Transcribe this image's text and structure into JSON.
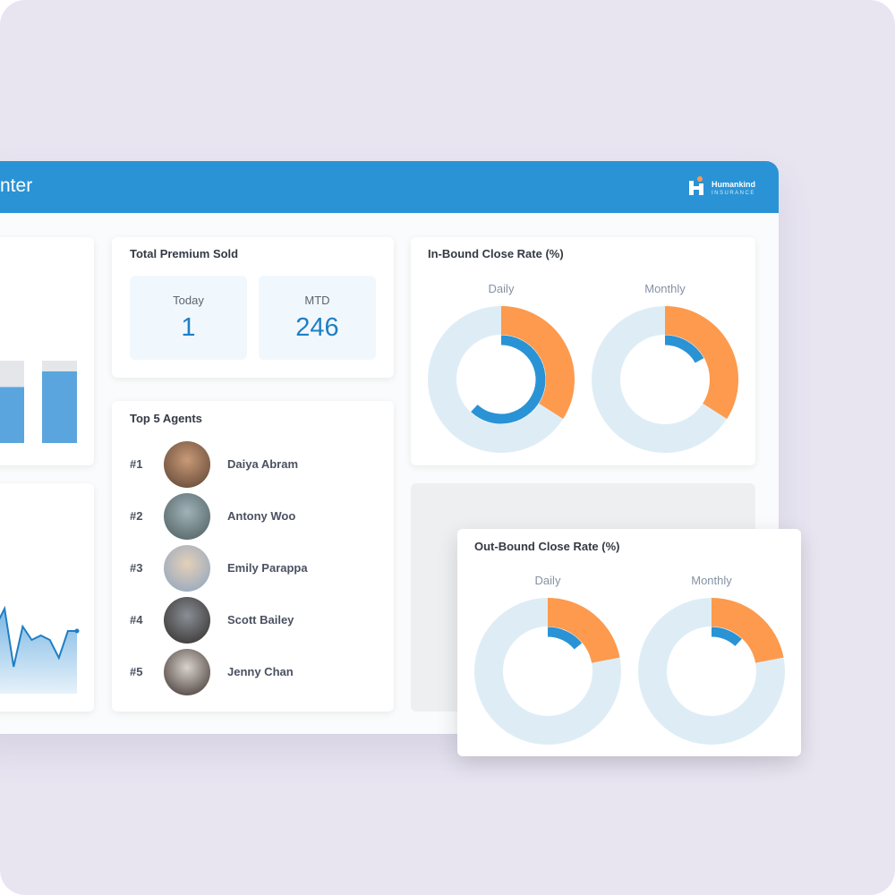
{
  "header": {
    "title": "nter",
    "logo": {
      "name": "Humankind",
      "sub": "INSURANCE"
    }
  },
  "bar_card": {
    "values": [
      68,
      87
    ],
    "ylim": [
      0,
      100
    ]
  },
  "trend_card": {
    "values": [
      75,
      95,
      30,
      75,
      60,
      65,
      60,
      40,
      70,
      70
    ],
    "ylim": [
      0,
      100
    ]
  },
  "premium": {
    "title": "Total Premium Sold",
    "today": {
      "label": "Today",
      "value": 1
    },
    "mtd": {
      "label": "MTD",
      "value": 246
    }
  },
  "agents": {
    "title": "Top 5 Agents",
    "rows": [
      {
        "rank": "#1",
        "name": "Daiya Abram"
      },
      {
        "rank": "#2",
        "name": "Antony Woo"
      },
      {
        "rank": "#3",
        "name": "Emily Parappa"
      },
      {
        "rank": "#4",
        "name": "Scott Bailey"
      },
      {
        "rank": "#5",
        "name": "Jenny Chan"
      }
    ]
  },
  "inbound": {
    "title": "In-Bound Close Rate (%)",
    "charts": [
      {
        "label": "Daily",
        "outer": 34,
        "inner": 62
      },
      {
        "label": "Monthly",
        "outer": 34,
        "inner": 17
      }
    ]
  },
  "outbound": {
    "title": "Out-Bound Close Rate (%)",
    "charts": [
      {
        "label": "Daily",
        "outer": 22,
        "inner": 14
      },
      {
        "label": "Monthly",
        "outer": 22,
        "inner": 12
      }
    ]
  }
}
